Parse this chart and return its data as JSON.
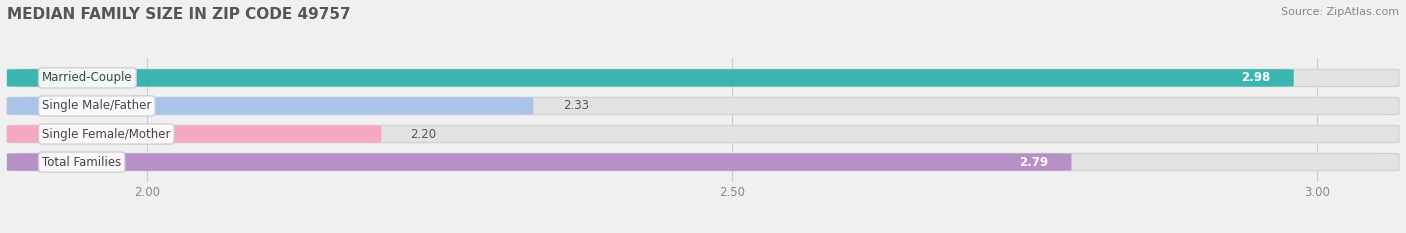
{
  "title": "MEDIAN FAMILY SIZE IN ZIP CODE 49757",
  "source": "Source: ZipAtlas.com",
  "categories": [
    "Married-Couple",
    "Single Male/Father",
    "Single Female/Mother",
    "Total Families"
  ],
  "values": [
    2.98,
    2.33,
    2.2,
    2.79
  ],
  "bar_colors": [
    "#3ab5b0",
    "#aac4e8",
    "#f4a8c4",
    "#b890c8"
  ],
  "xlim_left": 1.88,
  "xlim_right": 3.07,
  "data_min": 2.0,
  "data_max": 3.0,
  "xticks": [
    2.0,
    2.5,
    3.0
  ],
  "xtick_labels": [
    "2.00",
    "2.50",
    "3.00"
  ],
  "background_color": "#f0f0f0",
  "bar_bg_color": "#e2e2e2",
  "title_fontsize": 11,
  "source_fontsize": 8,
  "label_fontsize": 8.5,
  "value_fontsize": 8.5,
  "tick_fontsize": 8.5,
  "bar_height": 0.62,
  "bar_gap": 0.38,
  "value_threshold": 2.7
}
